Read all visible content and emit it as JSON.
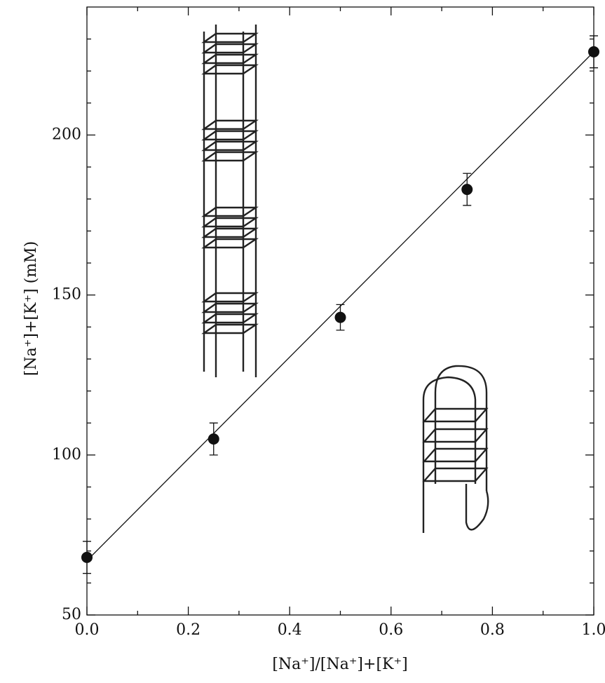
{
  "chart_data": {
    "type": "scatter",
    "xlabel": "[Na⁺]/[Na⁺]+[K⁺]",
    "ylabel": "[Na⁺]+[K⁺] (mM)",
    "xlim": [
      0,
      1
    ],
    "ylim": [
      50,
      240
    ],
    "xticks": [
      {
        "value": 0,
        "label": "0.0"
      },
      0.2,
      0.4,
      0.6,
      0.8,
      {
        "value": 1,
        "label": "1.0"
      }
    ],
    "yticks": [
      50,
      100,
      150,
      200
    ],
    "xminorticks": [
      0.1,
      0.3,
      0.5,
      0.7,
      0.9
    ],
    "yminorticks": [
      60,
      70,
      80,
      90,
      110,
      120,
      130,
      140,
      160,
      170,
      180,
      190,
      210,
      220,
      230
    ],
    "series": [
      {
        "x": [
          0,
          0.25,
          0.5,
          0.75,
          1
        ],
        "values": [
          68,
          105,
          143,
          183,
          226
        ],
        "errors": [
          5,
          5,
          4,
          5,
          5
        ],
        "color": "#111111"
      }
    ],
    "fit": {
      "x": [
        0,
        1
      ],
      "values": [
        67,
        226
      ],
      "color": "#111111"
    }
  }
}
